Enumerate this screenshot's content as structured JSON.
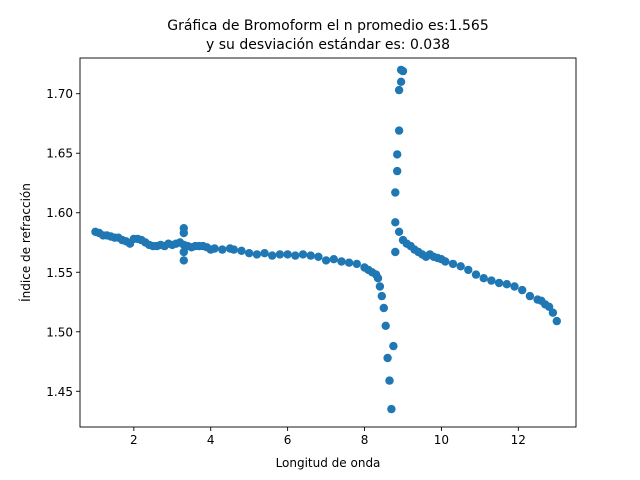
{
  "chart_data": {
    "type": "scatter",
    "title_line1": "Gráfica de Bromoform el n promedio es:1.565",
    "title_line2": "y su desviación estándar es: 0.038",
    "xlabel": "Longitud de onda",
    "ylabel": "Índice de refracción",
    "xlim": [
      0.6,
      13.5
    ],
    "ylim": [
      1.42,
      1.73
    ],
    "xticks": [
      2,
      4,
      6,
      8,
      10,
      12
    ],
    "yticks": [
      1.45,
      1.5,
      1.55,
      1.6,
      1.65,
      1.7
    ],
    "ytick_labels": [
      "1.45",
      "1.50",
      "1.55",
      "1.60",
      "1.65",
      "1.70"
    ],
    "grid": false,
    "marker_color": "#1f77b4",
    "x": [
      1.0,
      1.1,
      1.2,
      1.3,
      1.4,
      1.5,
      1.6,
      1.7,
      1.8,
      1.9,
      2.0,
      2.1,
      2.2,
      2.3,
      2.4,
      2.5,
      2.6,
      2.7,
      2.8,
      2.9,
      3.0,
      3.1,
      3.2,
      3.3,
      3.3,
      3.3,
      3.3,
      3.3,
      3.4,
      3.5,
      3.6,
      3.7,
      3.8,
      3.9,
      4.0,
      4.1,
      4.3,
      4.5,
      4.6,
      4.8,
      5.0,
      5.2,
      5.4,
      5.6,
      5.8,
      6.0,
      6.2,
      6.4,
      6.6,
      6.8,
      7.0,
      7.2,
      7.4,
      7.6,
      7.8,
      8.0,
      8.1,
      8.2,
      8.3,
      8.35,
      8.4,
      8.45,
      8.5,
      8.55,
      8.6,
      8.65,
      8.7,
      8.75,
      8.8,
      8.85,
      8.9,
      8.95,
      9.0,
      8.95,
      8.9,
      8.85,
      8.8,
      8.8,
      8.9,
      9.0,
      9.1,
      9.2,
      9.3,
      9.4,
      9.5,
      9.6,
      9.7,
      9.8,
      9.9,
      10.0,
      10.1,
      10.3,
      10.5,
      10.7,
      10.9,
      11.1,
      11.3,
      11.5,
      11.7,
      11.9,
      12.1,
      12.3,
      12.5,
      12.6,
      12.7,
      12.8,
      12.9,
      13.0
    ],
    "y": [
      1.584,
      1.583,
      1.581,
      1.581,
      1.58,
      1.579,
      1.579,
      1.577,
      1.576,
      1.574,
      1.578,
      1.578,
      1.577,
      1.575,
      1.573,
      1.572,
      1.572,
      1.573,
      1.572,
      1.574,
      1.573,
      1.574,
      1.575,
      1.587,
      1.583,
      1.573,
      1.567,
      1.56,
      1.572,
      1.571,
      1.572,
      1.572,
      1.572,
      1.571,
      1.569,
      1.57,
      1.569,
      1.57,
      1.569,
      1.568,
      1.566,
      1.565,
      1.566,
      1.564,
      1.565,
      1.565,
      1.564,
      1.565,
      1.564,
      1.563,
      1.56,
      1.561,
      1.559,
      1.558,
      1.557,
      1.554,
      1.552,
      1.55,
      1.548,
      1.545,
      1.538,
      1.53,
      1.52,
      1.505,
      1.478,
      1.459,
      1.435,
      1.488,
      1.567,
      1.649,
      1.703,
      1.71,
      1.719,
      1.72,
      1.669,
      1.635,
      1.617,
      1.592,
      1.584,
      1.577,
      1.574,
      1.572,
      1.569,
      1.567,
      1.565,
      1.563,
      1.565,
      1.563,
      1.562,
      1.561,
      1.559,
      1.557,
      1.555,
      1.552,
      1.548,
      1.545,
      1.543,
      1.541,
      1.54,
      1.538,
      1.535,
      1.53,
      1.527,
      1.526,
      1.523,
      1.521,
      1.516,
      1.509
    ]
  }
}
